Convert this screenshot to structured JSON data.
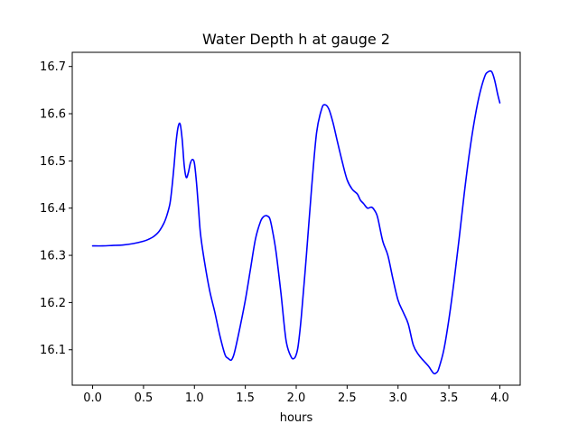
{
  "chart_data": {
    "type": "line",
    "title": "Water Depth h at gauge 2",
    "xlabel": "hours",
    "ylabel": "",
    "xlim": [
      -0.2,
      4.2
    ],
    "ylim": [
      16.025,
      16.73
    ],
    "xticks": [
      0.0,
      0.5,
      1.0,
      1.5,
      2.0,
      2.5,
      3.0,
      3.5,
      4.0
    ],
    "xtick_labels": [
      "0.0",
      "0.5",
      "1.0",
      "1.5",
      "2.0",
      "2.5",
      "3.0",
      "3.5",
      "4.0"
    ],
    "yticks": [
      16.1,
      16.2,
      16.3,
      16.4,
      16.5,
      16.6,
      16.7
    ],
    "ytick_labels": [
      "16.1",
      "16.2",
      "16.3",
      "16.4",
      "16.5",
      "16.6",
      "16.7"
    ],
    "grid": false,
    "series": [
      {
        "color": "#0000ff",
        "x": [
          0.0,
          0.1,
          0.2,
          0.3,
          0.4,
          0.5,
          0.55,
          0.6,
          0.65,
          0.7,
          0.73,
          0.76,
          0.78,
          0.8,
          0.82,
          0.84,
          0.86,
          0.88,
          0.9,
          0.92,
          0.94,
          0.96,
          0.98,
          1.0,
          1.02,
          1.04,
          1.06,
          1.1,
          1.15,
          1.2,
          1.25,
          1.3,
          1.33,
          1.36,
          1.38,
          1.4,
          1.45,
          1.5,
          1.55,
          1.6,
          1.65,
          1.68,
          1.7,
          1.72,
          1.74,
          1.76,
          1.8,
          1.85,
          1.9,
          1.95,
          1.98,
          2.0,
          2.02,
          2.05,
          2.1,
          2.15,
          2.2,
          2.25,
          2.28,
          2.32,
          2.36,
          2.4,
          2.45,
          2.5,
          2.55,
          2.6,
          2.63,
          2.66,
          2.7,
          2.74,
          2.77,
          2.8,
          2.85,
          2.9,
          2.95,
          3.0,
          3.05,
          3.1,
          3.15,
          3.2,
          3.25,
          3.3,
          3.35,
          3.38,
          3.4,
          3.45,
          3.5,
          3.55,
          3.6,
          3.65,
          3.7,
          3.75,
          3.8,
          3.85,
          3.88,
          3.92,
          3.95,
          3.98,
          4.0
        ],
        "y": [
          16.32,
          16.32,
          16.321,
          16.322,
          16.325,
          16.33,
          16.334,
          16.34,
          16.35,
          16.368,
          16.385,
          16.41,
          16.445,
          16.49,
          16.54,
          16.572,
          16.578,
          16.545,
          16.49,
          16.465,
          16.475,
          16.495,
          16.503,
          16.495,
          16.455,
          16.4,
          16.345,
          16.285,
          16.225,
          16.18,
          16.13,
          16.09,
          16.082,
          16.078,
          16.085,
          16.1,
          16.15,
          16.205,
          16.27,
          16.335,
          16.372,
          16.382,
          16.384,
          16.383,
          16.378,
          16.36,
          16.31,
          16.22,
          16.12,
          16.085,
          16.082,
          16.09,
          16.11,
          16.17,
          16.3,
          16.44,
          16.56,
          16.61,
          16.619,
          16.61,
          16.582,
          16.545,
          16.5,
          16.46,
          16.44,
          16.43,
          16.417,
          16.41,
          16.4,
          16.402,
          16.395,
          16.38,
          16.33,
          16.3,
          16.25,
          16.205,
          16.18,
          16.155,
          16.11,
          16.09,
          16.077,
          16.065,
          16.05,
          16.052,
          16.06,
          16.1,
          16.165,
          16.245,
          16.335,
          16.43,
          16.515,
          16.585,
          16.64,
          16.678,
          16.688,
          16.689,
          16.67,
          16.64,
          16.623
        ]
      }
    ]
  }
}
